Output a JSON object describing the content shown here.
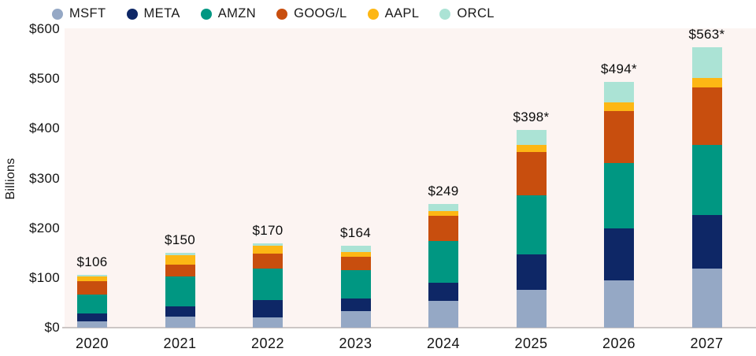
{
  "chart_data": {
    "type": "bar",
    "subtype": "stacked",
    "title": "",
    "ylabel": "Billions",
    "xlabel": "",
    "unit": "USD billions",
    "categories": [
      "2020",
      "2021",
      "2022",
      "2023",
      "2024",
      "2025",
      "2026",
      "2027"
    ],
    "series": [
      {
        "name": "MSFT",
        "color": "#95a8c5",
        "values": [
          12,
          22,
          21,
          34,
          54,
          76,
          95,
          118
        ]
      },
      {
        "name": "META",
        "color": "#0e2766",
        "values": [
          16,
          20,
          34,
          25,
          36,
          72,
          105,
          108
        ]
      },
      {
        "name": "AMZN",
        "color": "#009782",
        "values": [
          38,
          61,
          64,
          56,
          84,
          118,
          131,
          142
        ]
      },
      {
        "name": "GOOG/L",
        "color": "#c84e0e",
        "values": [
          28,
          24,
          30,
          28,
          51,
          87,
          104,
          115
        ]
      },
      {
        "name": "AAPL",
        "color": "#fdb714",
        "values": [
          9,
          19,
          15,
          9,
          9,
          15,
          18,
          19
        ]
      },
      {
        "name": "ORCL",
        "color": "#abe3d5",
        "values": [
          3,
          4,
          6,
          12,
          15,
          30,
          41,
          61
        ]
      }
    ],
    "totals": [
      106,
      150,
      170,
      164,
      249,
      398,
      494,
      563
    ],
    "total_labels": [
      "$106",
      "$150",
      "$170",
      "$164",
      "$249",
      "$398*",
      "$494*",
      "$563*"
    ],
    "y_ticks": [
      "$600",
      "$500",
      "$400",
      "$300",
      "$200",
      "$100",
      "$0"
    ],
    "ylim": [
      0,
      600
    ],
    "grid": false,
    "legend_position": "top"
  },
  "colors": {
    "plot_background": "#fcf4f2",
    "page_background": "#ffffff",
    "axis_line": "#ccc6c5",
    "text": "#141414"
  }
}
